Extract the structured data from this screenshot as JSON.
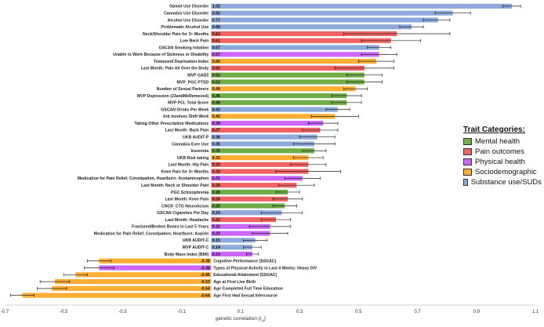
{
  "chart_data": {
    "type": "bar",
    "orientation": "horizontal",
    "xlabel": "genetic correlation (r",
    "xlabel_sub": "g",
    "xlabel_tail": ")",
    "xlim": [
      -0.7,
      1.1
    ],
    "xticks": [
      "-0.7",
      "-0.5",
      "-0.3",
      "-0.1",
      "0.1",
      "0.3",
      "0.5",
      "0.7",
      "0.9",
      "1.1"
    ],
    "legend_title": "Trait Categories:",
    "legend_position": "right",
    "categories_legend": [
      {
        "name": "Mental health",
        "color": "#70ad47"
      },
      {
        "name": "Pain outcomes",
        "color": "#f26363"
      },
      {
        "name": "Physical health",
        "color": "#cc66ff"
      },
      {
        "name": "Sociodemographic",
        "color": "#ffad33"
      },
      {
        "name": "Substance use/SUDs",
        "color": "#8ea9db"
      }
    ],
    "bars": [
      {
        "label": "Opioid Use Disorder",
        "value_label": "1.02",
        "value": 1.02,
        "ci": [
          0.99,
          1.05
        ],
        "category": "Substance use/SUDs"
      },
      {
        "label": "Cannabis Use Disorder",
        "value_label": "0.82",
        "value": 0.82,
        "ci": [
          0.76,
          0.88
        ],
        "category": "Substance use/SUDs"
      },
      {
        "label": "Alcohol Use Disorder",
        "value_label": "0.77",
        "value": 0.77,
        "ci": [
          0.72,
          0.81
        ],
        "category": "Substance use/SUDs"
      },
      {
        "label": "Problematic Alcohol Use",
        "value_label": "0.68",
        "value": 0.68,
        "ci": [
          0.64,
          0.72
        ],
        "category": "Substance use/SUDs"
      },
      {
        "label": "Neck/Shoulder Pain for 3+ Months",
        "value_label": "0.63",
        "value": 0.63,
        "ci": [
          0.45,
          0.81
        ],
        "category": "Pain outcomes"
      },
      {
        "label": "Low Back Pain",
        "value_label": "0.61",
        "value": 0.61,
        "ci": [
          0.51,
          0.71
        ],
        "category": "Pain outcomes"
      },
      {
        "label": "GSCAN Smoking Initation",
        "value_label": "0.57",
        "value": 0.57,
        "ci": [
          0.53,
          0.61
        ],
        "category": "Substance use/SUDs"
      },
      {
        "label": "Unable to Work Because of Sickness or Disability",
        "value_label": "0.57",
        "value": 0.57,
        "ci": [
          0.51,
          0.63
        ],
        "category": "Physical health"
      },
      {
        "label": "Townsend Deprivation Index",
        "value_label": "0.56",
        "value": 0.56,
        "ci": [
          0.5,
          0.62
        ],
        "category": "Sociodemographic"
      },
      {
        "label": "Last Month: Pain All Over the Body",
        "value_label": "0.52",
        "value": 0.52,
        "ci": [
          0.42,
          0.62
        ],
        "category": "Pain outcomes"
      },
      {
        "label": "MVP GAD2",
        "value_label": "0.52",
        "value": 0.52,
        "ci": [
          0.46,
          0.58
        ],
        "category": "Mental health"
      },
      {
        "label": "MVP_PGC PTSD",
        "value_label": "0.52",
        "value": 0.52,
        "ci": [
          0.46,
          0.58
        ],
        "category": "Mental health"
      },
      {
        "label": "Number of Sexual Partners",
        "value_label": "0.49",
        "value": 0.49,
        "ci": [
          0.45,
          0.53
        ],
        "category": "Sociodemographic"
      },
      {
        "label": "MVP Depression (23andMeRemoved)",
        "value_label": "0.46",
        "value": 0.46,
        "ci": [
          0.41,
          0.51
        ],
        "category": "Mental health"
      },
      {
        "label": "MVP PCL Total Score",
        "value_label": "0.46",
        "value": 0.46,
        "ci": [
          0.41,
          0.51
        ],
        "category": "Mental health"
      },
      {
        "label": "GSCAN Drinks Per Week",
        "value_label": "0.43",
        "value": 0.43,
        "ci": [
          0.39,
          0.47
        ],
        "category": "Substance use/SUDs"
      },
      {
        "label": "Job Involves Shift Work",
        "value_label": "0.42",
        "value": 0.42,
        "ci": [
          0.34,
          0.5
        ],
        "category": "Sociodemographic"
      },
      {
        "label": "Taking Other Prescription Medications",
        "value_label": "0.38",
        "value": 0.38,
        "ci": [
          0.33,
          0.43
        ],
        "category": "Physical health"
      },
      {
        "label": "Last Month: Back Pain",
        "value_label": "0.37",
        "value": 0.37,
        "ci": [
          0.31,
          0.43
        ],
        "category": "Pain outcomes"
      },
      {
        "label": "UKB AUDIT-P",
        "value_label": "0.36",
        "value": 0.36,
        "ci": [
          0.3,
          0.42
        ],
        "category": "Substance use/SUDs"
      },
      {
        "label": "Cannabis Ever Use",
        "value_label": "0.35",
        "value": 0.35,
        "ci": [
          0.28,
          0.42
        ],
        "category": "Substance use/SUDs"
      },
      {
        "label": "Insomnia",
        "value_label": "0.35",
        "value": 0.35,
        "ci": [
          0.31,
          0.39
        ],
        "category": "Mental health"
      },
      {
        "label": "UKB Risk taking",
        "value_label": "0.33",
        "value": 0.33,
        "ci": [
          0.28,
          0.38
        ],
        "category": "Sociodemographic"
      },
      {
        "label": "Last Month: Hip Pain",
        "value_label": "0.33",
        "value": 0.33,
        "ci": [
          0.27,
          0.39
        ],
        "category": "Pain outcomes"
      },
      {
        "label": "Knee Pain for 3+ Months",
        "value_label": "0.33",
        "value": 0.33,
        "ci": [
          0.22,
          0.44
        ],
        "category": "Pain outcomes"
      },
      {
        "label": "Medication for Pain Relief, Constipation, Heartburn: Acetaminophen",
        "value_label": "0.31",
        "value": 0.31,
        "ci": [
          0.25,
          0.37
        ],
        "category": "Physical health"
      },
      {
        "label": "Last Month: Neck or Shoulder Pain",
        "value_label": "0.29",
        "value": 0.29,
        "ci": [
          0.23,
          0.35
        ],
        "category": "Pain outcomes"
      },
      {
        "label": "PGC Schizophrenia",
        "value_label": "0.26",
        "value": 0.26,
        "ci": [
          0.22,
          0.3
        ],
        "category": "Mental health"
      },
      {
        "label": "Last Month: Knee Pain",
        "value_label": "0.26",
        "value": 0.26,
        "ci": [
          0.21,
          0.31
        ],
        "category": "Pain outcomes"
      },
      {
        "label": "CNCR_CTG Neuroticism",
        "value_label": "0.25",
        "value": 0.25,
        "ci": [
          0.21,
          0.29
        ],
        "category": "Mental health"
      },
      {
        "label": "GSCAN Cigarettes Per Day",
        "value_label": "0.24",
        "value": 0.24,
        "ci": [
          0.17,
          0.31
        ],
        "category": "Substance use/SUDs"
      },
      {
        "label": "Last Month: Headache",
        "value_label": "0.22",
        "value": 0.22,
        "ci": [
          0.17,
          0.27
        ],
        "category": "Pain outcomes"
      },
      {
        "label": "Fractured/Broken Bones in Last 5 Years",
        "value_label": "0.20",
        "value": 0.2,
        "ci": [
          0.13,
          0.27
        ],
        "category": "Physical health"
      },
      {
        "label": "Medication for Pain Relief, Constipation, Heartburn: Aspirin",
        "value_label": "0.20",
        "value": 0.2,
        "ci": [
          0.14,
          0.26
        ],
        "category": "Physical health"
      },
      {
        "label": "UKB AUDIT-C",
        "value_label": "0.15",
        "value": 0.15,
        "ci": [
          0.11,
          0.19
        ],
        "category": "Substance use/SUDs"
      },
      {
        "label": "MVP AUDIT-C",
        "value_label": "0.14",
        "value": 0.14,
        "ci": [
          0.11,
          0.17
        ],
        "category": "Substance use/SUDs"
      },
      {
        "label": "Body Mass Index (BMI)",
        "value_label": "0.14",
        "value": 0.14,
        "ci": [
          0.12,
          0.16
        ],
        "category": "Physical health"
      },
      {
        "label": "Cognitive Performance (SSGAC)",
        "value_label": "-0.38",
        "value": -0.38,
        "ci": [
          -0.42,
          -0.34
        ],
        "category": "Sociodemographic"
      },
      {
        "label": "Types of Physical Activity in Last 4 Weeks: Heavy DIY",
        "value_label": "-0.38",
        "value": -0.38,
        "ci": [
          -0.43,
          -0.33
        ],
        "category": "Physical health"
      },
      {
        "label": "Educational Attainment (SSGAC)",
        "value_label": "-0.46",
        "value": -0.46,
        "ci": [
          -0.5,
          -0.42
        ],
        "category": "Sociodemographic"
      },
      {
        "label": "Age at First Live Birth",
        "value_label": "-0.53",
        "value": -0.53,
        "ci": [
          -0.58,
          -0.48
        ],
        "category": "Sociodemographic"
      },
      {
        "label": "Age Completed Full Time Education",
        "value_label": "-0.54",
        "value": -0.54,
        "ci": [
          -0.59,
          -0.49
        ],
        "category": "Sociodemographic"
      },
      {
        "label": "Age First Had Sexual Intercourse",
        "value_label": "-0.64",
        "value": -0.64,
        "ci": [
          -0.68,
          -0.6
        ],
        "category": "Sociodemographic"
      }
    ]
  }
}
